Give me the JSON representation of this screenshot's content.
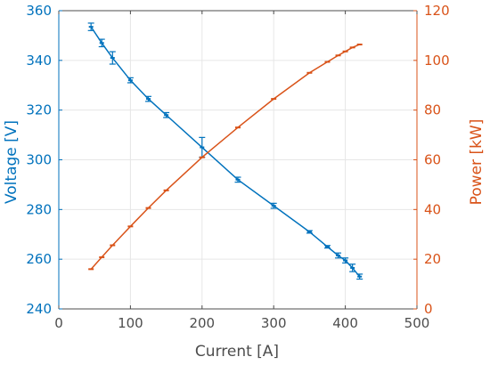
{
  "chart_data": {
    "type": "line",
    "xlabel": "Current  [A]",
    "ylabel_left": "Voltage  [V]",
    "ylabel_right": "Power  [kW]",
    "xlim": [
      0,
      500
    ],
    "ylim_left": [
      240,
      360
    ],
    "ylim_right": [
      0,
      120
    ],
    "x_ticks": [
      "0",
      "100",
      "200",
      "300",
      "400",
      "500"
    ],
    "y_left_ticks": [
      "240",
      "260",
      "280",
      "300",
      "320",
      "340",
      "360"
    ],
    "y_right_ticks": [
      "0",
      "20",
      "40",
      "60",
      "80",
      "100",
      "120"
    ],
    "grid": true,
    "colors": {
      "voltage": "#0072BD",
      "power": "#D95319",
      "axis_text": "#4d4d4d",
      "grid": "#e6e6e6"
    },
    "series": [
      {
        "axis": "left",
        "x": [
          45,
          60,
          75,
          100,
          125,
          150,
          200,
          250,
          300,
          350,
          375,
          390,
          400,
          410,
          420
        ],
        "y": [
          353.5,
          347,
          341,
          332,
          324.5,
          318,
          305,
          292,
          281.5,
          271,
          265,
          261.5,
          259.5,
          256.5,
          253
        ],
        "err": [
          1.5,
          1.5,
          2.5,
          1.0,
          1.0,
          1.0,
          4.0,
          1.0,
          1.0,
          0.5,
          0.5,
          1.0,
          1.0,
          1.5,
          1.0
        ]
      },
      {
        "axis": "right",
        "x": [
          45,
          60,
          75,
          100,
          125,
          150,
          200,
          250,
          300,
          350,
          375,
          390,
          400,
          410,
          420
        ],
        "y": [
          16,
          20.8,
          25.6,
          33.2,
          40.6,
          47.7,
          61,
          73,
          84.5,
          95,
          99.4,
          102,
          103.6,
          105.2,
          106.4
        ]
      }
    ]
  }
}
